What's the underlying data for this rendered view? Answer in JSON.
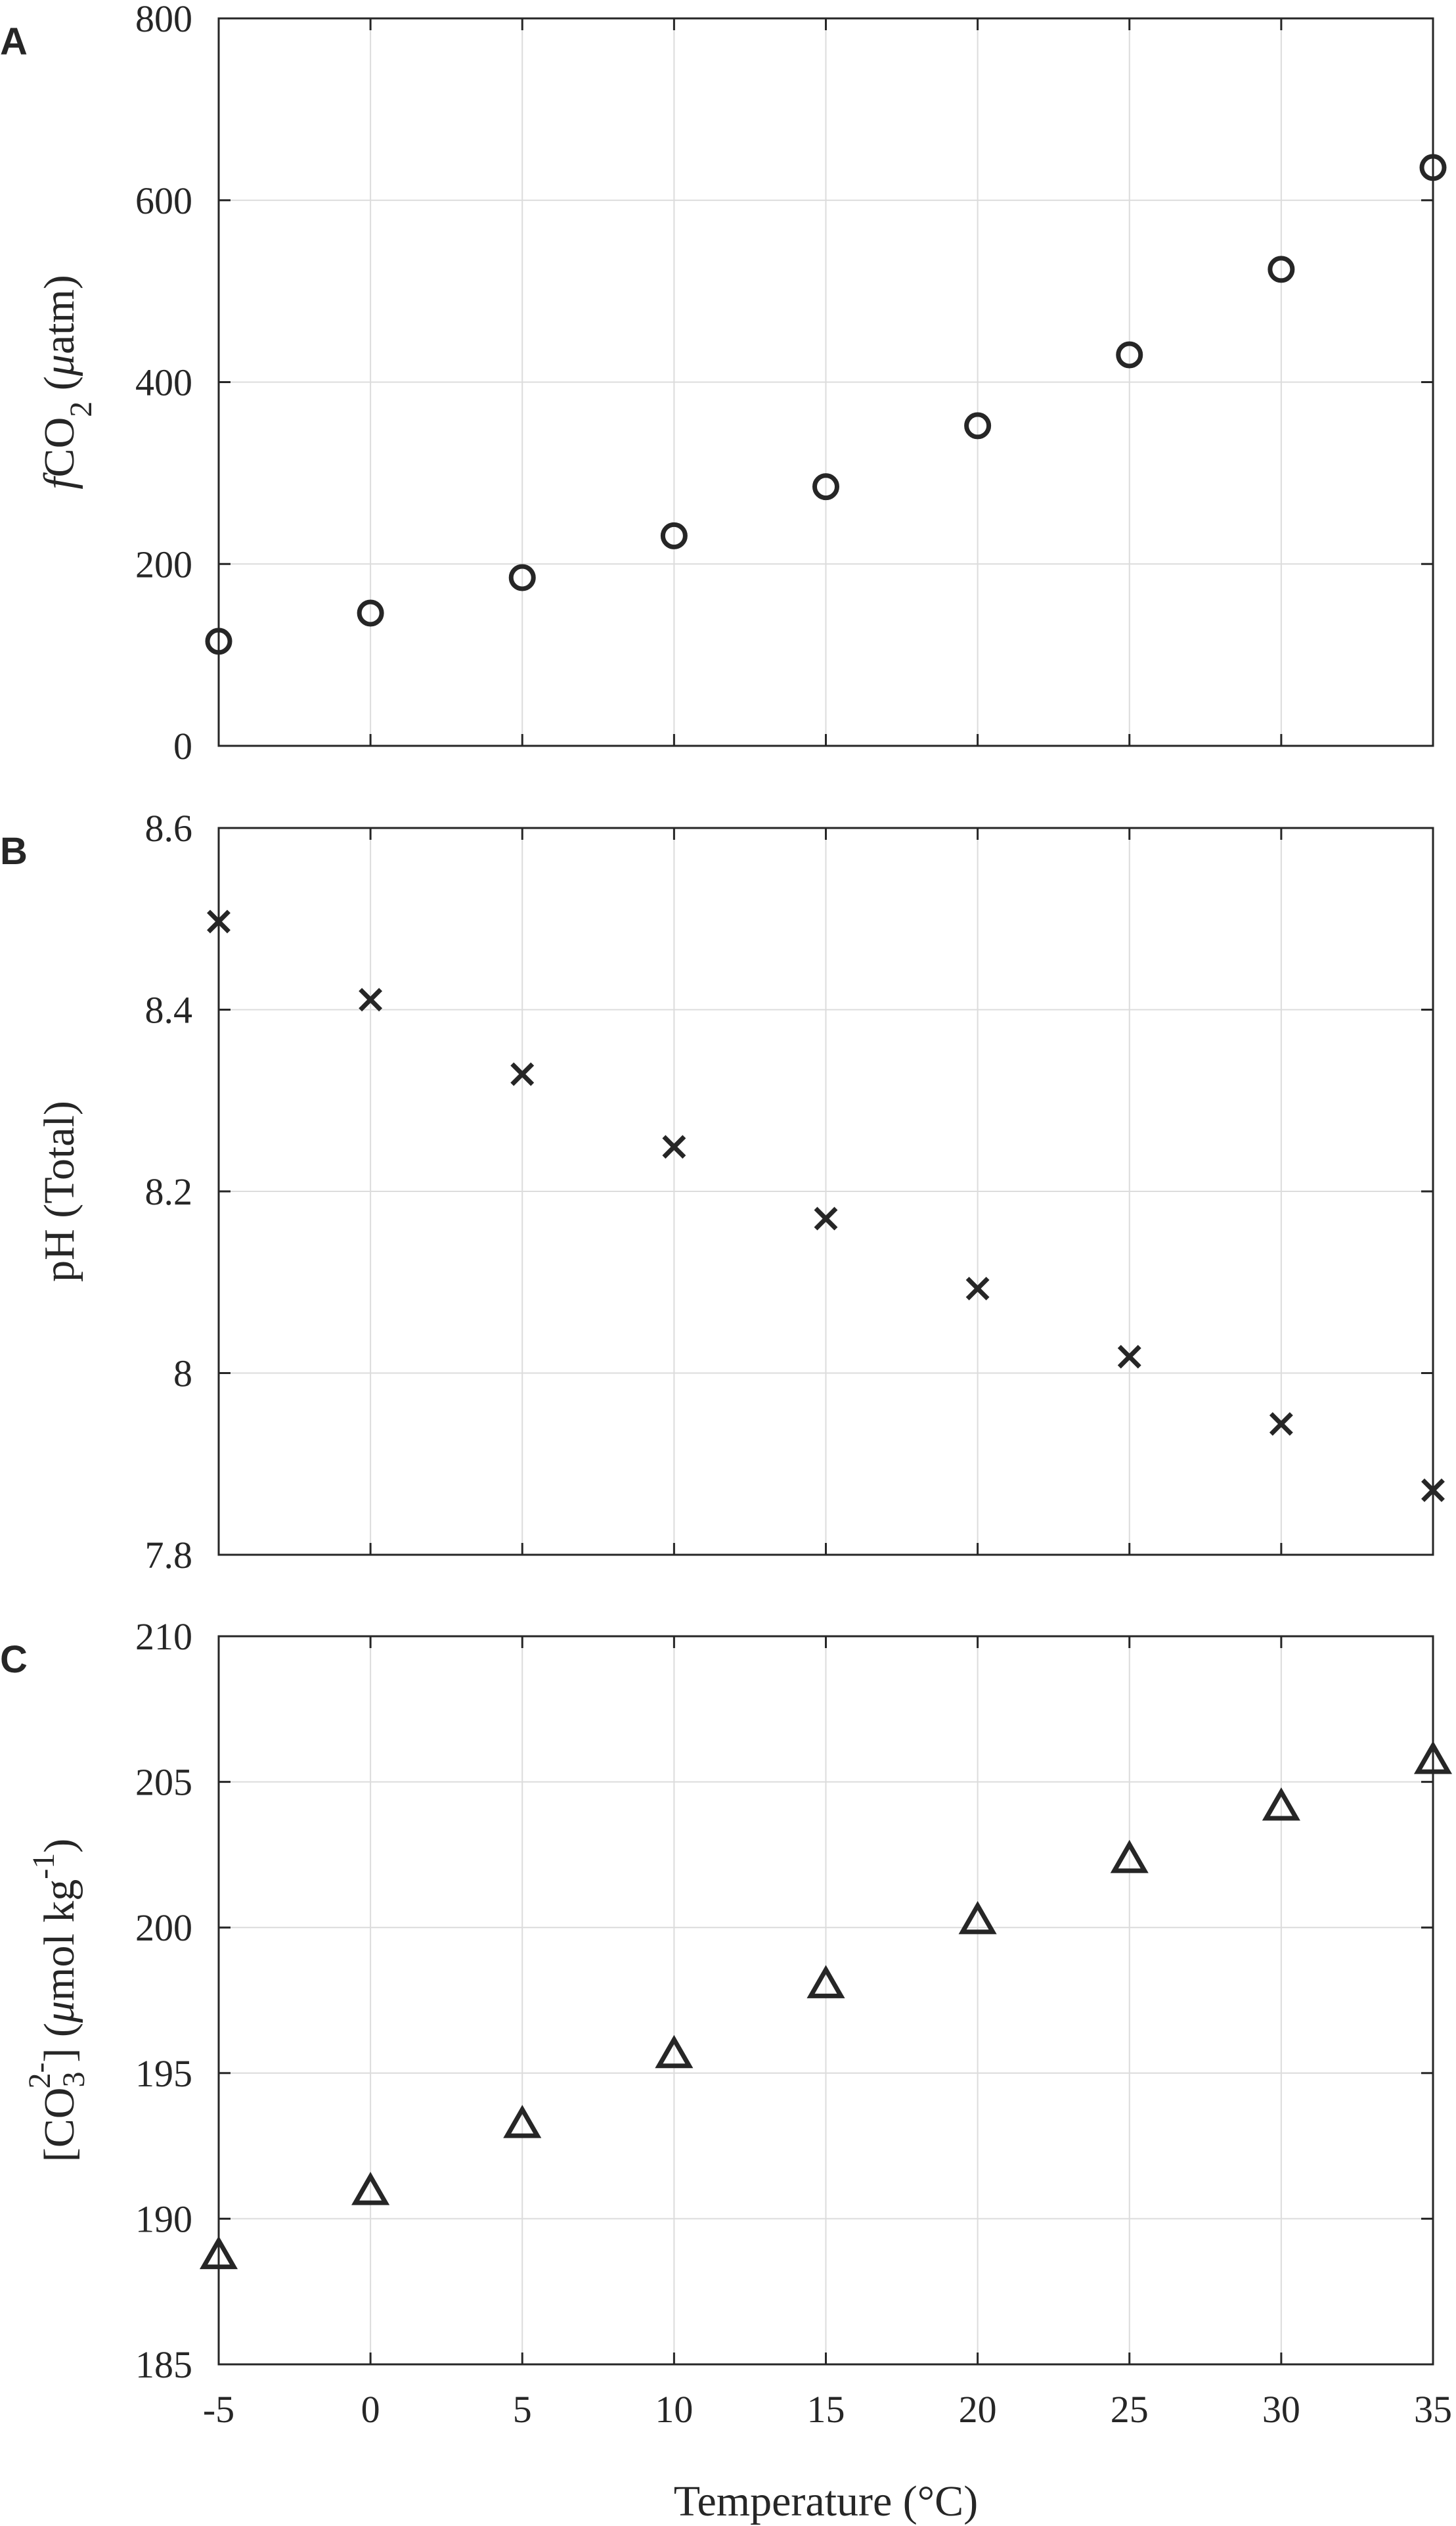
{
  "figure": {
    "xlabel": "Temperature (°C)"
  },
  "chart_data": [
    {
      "type": "scatter",
      "panel": "A",
      "marker": "circle",
      "ylabel_parts": {
        "f": "f",
        "co": "CO",
        "sub": "2",
        "unit": " (",
        "mu": "μ",
        "atm": "atm)"
      },
      "x": [
        -5,
        0,
        5,
        10,
        15,
        20,
        25,
        30,
        35
      ],
      "y": [
        115,
        146,
        185,
        231,
        285,
        352,
        430,
        524,
        636
      ],
      "xlim": [
        -5,
        35
      ],
      "ylim": [
        0,
        800
      ],
      "yticks": [
        0,
        200,
        400,
        600,
        800
      ],
      "ytick_labels": [
        "0",
        "200",
        "400",
        "600",
        "800"
      ],
      "grid": true
    },
    {
      "type": "scatter",
      "panel": "B",
      "marker": "x",
      "ylabel": "pH (Total)",
      "x": [
        -5,
        0,
        5,
        10,
        15,
        20,
        25,
        30,
        35
      ],
      "y": [
        8.497,
        8.411,
        8.329,
        8.249,
        8.17,
        8.093,
        8.018,
        7.944,
        7.871
      ],
      "xlim": [
        -5,
        35
      ],
      "ylim": [
        7.8,
        8.6
      ],
      "yticks": [
        7.8,
        8,
        8.2,
        8.4,
        8.6
      ],
      "ytick_labels": [
        "7.8",
        "8",
        "8.2",
        "8.4",
        "8.6"
      ],
      "grid": true
    },
    {
      "type": "scatter",
      "panel": "C",
      "marker": "triangle",
      "ylabel_parts": {
        "open": "[CO",
        "sub": "3",
        "sup": "2-",
        "close": "] (",
        "mu": "μ",
        "unit": "mol kg",
        "exp": "-1",
        "end": ")"
      },
      "x": [
        -5,
        0,
        5,
        10,
        15,
        20,
        25,
        30,
        35
      ],
      "y": [
        188.8,
        191.0,
        193.3,
        195.7,
        198.1,
        200.3,
        202.4,
        204.2,
        205.8
      ],
      "xlim": [
        -5,
        35
      ],
      "ylim": [
        185,
        210
      ],
      "yticks": [
        185,
        190,
        195,
        200,
        205,
        210
      ],
      "ytick_labels": [
        "185",
        "190",
        "195",
        "200",
        "205",
        "210"
      ],
      "xticks": [
        -5,
        0,
        5,
        10,
        15,
        20,
        25,
        30,
        35
      ],
      "xtick_labels": [
        "-5",
        "0",
        "5",
        "10",
        "15",
        "20",
        "25",
        "30",
        "35"
      ],
      "grid": true
    }
  ]
}
